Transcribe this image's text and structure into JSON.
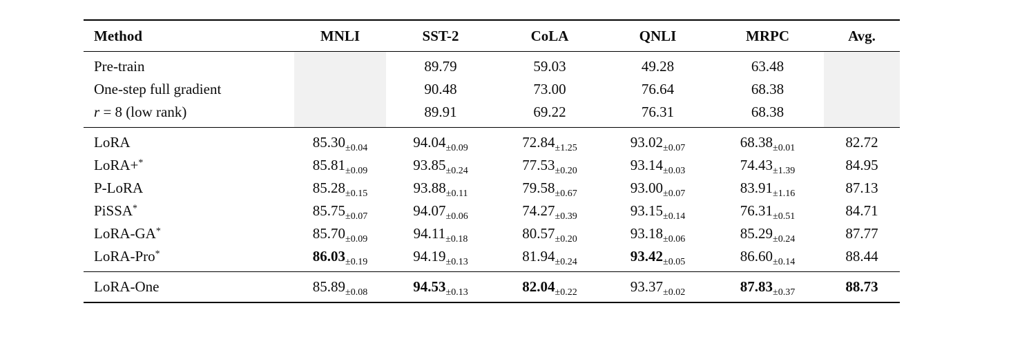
{
  "table": {
    "shaded_color": "#f1f1f1",
    "columns": [
      {
        "label": "Method"
      },
      {
        "label": "MNLI"
      },
      {
        "label": "SST-2"
      },
      {
        "label": "CoLA"
      },
      {
        "label": "QNLI"
      },
      {
        "label": "MRPC"
      },
      {
        "label": "Avg."
      }
    ],
    "sections": [
      {
        "name": "baselines",
        "rows": [
          {
            "method": {
              "text": "Pre-train"
            },
            "cells": [
              {
                "shaded": true
              },
              {
                "value": "89.79"
              },
              {
                "value": "59.03"
              },
              {
                "value": "49.28"
              },
              {
                "value": "63.48"
              },
              {
                "shaded": true
              }
            ]
          },
          {
            "method": {
              "text": "One-step full gradient"
            },
            "cells": [
              {
                "shaded": true
              },
              {
                "value": "90.48"
              },
              {
                "value": "73.00"
              },
              {
                "value": "76.64"
              },
              {
                "value": "68.38"
              },
              {
                "shaded": true
              }
            ]
          },
          {
            "method": {
              "math": "r",
              "text": " = 8 (low rank)"
            },
            "cells": [
              {
                "shaded": true
              },
              {
                "value": "89.91"
              },
              {
                "value": "69.22"
              },
              {
                "value": "76.31"
              },
              {
                "value": "68.38"
              },
              {
                "shaded": true
              }
            ]
          }
        ]
      },
      {
        "name": "lora-variants",
        "rows": [
          {
            "method": {
              "text": "LoRA"
            },
            "cells": [
              {
                "value": "85.30",
                "std": "±0.04"
              },
              {
                "value": "94.04",
                "std": "±0.09"
              },
              {
                "value": "72.84",
                "std": "±1.25"
              },
              {
                "value": "93.02",
                "std": "±0.07"
              },
              {
                "value": "68.38",
                "std": "±0.01"
              },
              {
                "value": "82.72"
              }
            ]
          },
          {
            "method": {
              "text": "LoRA+",
              "sup": "*"
            },
            "cells": [
              {
                "value": "85.81",
                "std": "±0.09"
              },
              {
                "value": "93.85",
                "std": "±0.24"
              },
              {
                "value": "77.53",
                "std": "±0.20"
              },
              {
                "value": "93.14",
                "std": "±0.03"
              },
              {
                "value": "74.43",
                "std": "±1.39"
              },
              {
                "value": "84.95"
              }
            ]
          },
          {
            "method": {
              "text": "P-LoRA"
            },
            "cells": [
              {
                "value": "85.28",
                "std": "±0.15"
              },
              {
                "value": "93.88",
                "std": "±0.11"
              },
              {
                "value": "79.58",
                "std": "±0.67"
              },
              {
                "value": "93.00",
                "std": "±0.07"
              },
              {
                "value": "83.91",
                "std": "±1.16"
              },
              {
                "value": "87.13"
              }
            ]
          },
          {
            "method": {
              "text": "PiSSA",
              "sup": "*"
            },
            "cells": [
              {
                "value": "85.75",
                "std": "±0.07"
              },
              {
                "value": "94.07",
                "std": "±0.06"
              },
              {
                "value": "74.27",
                "std": "±0.39"
              },
              {
                "value": "93.15",
                "std": "±0.14"
              },
              {
                "value": "76.31",
                "std": "±0.51"
              },
              {
                "value": "84.71"
              }
            ]
          },
          {
            "method": {
              "text": "LoRA-GA",
              "sup": "*"
            },
            "cells": [
              {
                "value": "85.70",
                "std": "±0.09"
              },
              {
                "value": "94.11",
                "std": "±0.18"
              },
              {
                "value": "80.57",
                "std": "±0.20"
              },
              {
                "value": "93.18",
                "std": "±0.06"
              },
              {
                "value": "85.29",
                "std": "±0.24"
              },
              {
                "value": "87.77"
              }
            ]
          },
          {
            "method": {
              "text": "LoRA-Pro",
              "sup": "*"
            },
            "cells": [
              {
                "value": "86.03",
                "std": "±0.19",
                "bold": true
              },
              {
                "value": "94.19",
                "std": "±0.13"
              },
              {
                "value": "81.94",
                "std": "±0.24"
              },
              {
                "value": "93.42",
                "std": "±0.05",
                "bold": true
              },
              {
                "value": "86.60",
                "std": "±0.14"
              },
              {
                "value": "88.44"
              }
            ]
          }
        ]
      },
      {
        "name": "lora-one",
        "rows": [
          {
            "method": {
              "text": "LoRA-One"
            },
            "cells": [
              {
                "value": "85.89",
                "std": "±0.08"
              },
              {
                "value": "94.53",
                "std": "±0.13",
                "bold": true
              },
              {
                "value": "82.04",
                "std": "±0.22",
                "bold": true
              },
              {
                "value": "93.37",
                "std": "±0.02"
              },
              {
                "value": "87.83",
                "std": "±0.37",
                "bold": true
              },
              {
                "value": "88.73",
                "bold": true
              }
            ]
          }
        ]
      }
    ]
  }
}
